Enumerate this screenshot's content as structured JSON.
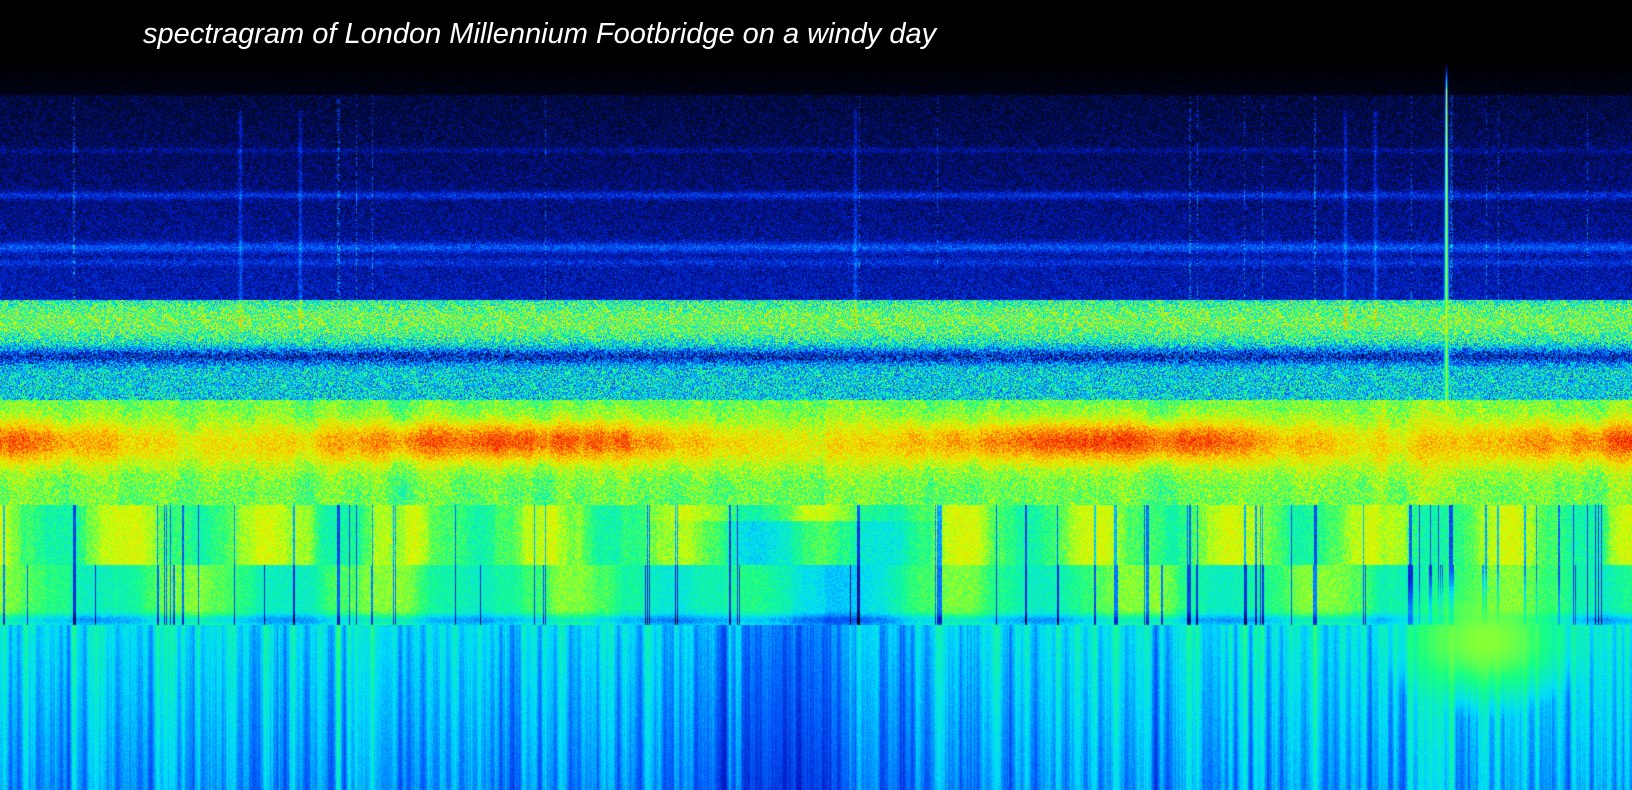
{
  "chart_data": {
    "type": "heatmap",
    "title": "spectragram of London Millennium Footbridge on a windy day",
    "xlabel": "",
    "ylabel": "",
    "axes_shown": false,
    "grid": false,
    "legend": "none",
    "colormap": [
      "#000000",
      "#000a3c",
      "#0018c8",
      "#0064ff",
      "#00dcff",
      "#18ff80",
      "#d8ff00",
      "#ffc800",
      "#ff5000",
      "#e60000"
    ],
    "background": "#000000",
    "title_color": "#ffffff",
    "bands": [
      {
        "name": "lowest-frequency vertical streaks",
        "level": 0.46
      },
      {
        "name": "cyan band",
        "level": 0.58
      },
      {
        "name": "green band",
        "level": 0.66
      },
      {
        "name": "red-yellow energy band",
        "level": 0.86
      },
      {
        "name": "blue-green noise band",
        "level": 0.6
      },
      {
        "name": "dark blue upper band",
        "level": 0.34
      }
    ],
    "features": [
      {
        "name": "narrow vertical spike",
        "level": 0.7
      },
      {
        "name": "bright low-frequency patch",
        "level": 0.62
      }
    ]
  }
}
